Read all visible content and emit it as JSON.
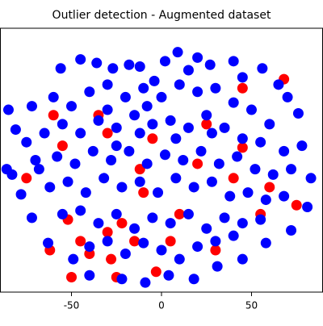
{
  "chart_data": {
    "type": "scatter",
    "title": "Outlier detection - Augmented dataset",
    "xlim": [
      -89.7,
      89.7
    ],
    "ylim": [
      -73.3,
      73.3
    ],
    "xticks": [
      -50,
      0,
      50
    ],
    "series": [
      {
        "color": "#ff0000",
        "x": [
          -52,
          -45,
          -30,
          -22,
          -15,
          -10,
          -5,
          -30,
          -55,
          -60,
          -75,
          -40,
          -28,
          5,
          -3,
          20,
          40,
          45,
          60,
          68,
          25,
          45,
          -35,
          -12,
          10,
          -50,
          -25,
          30,
          55,
          75,
          -62
        ],
        "y": [
          -33,
          -45,
          -40,
          -35,
          -45,
          -18,
          12,
          15,
          8,
          25,
          -10,
          -52,
          -55,
          -45,
          -62,
          -2,
          -10,
          7,
          -15,
          45,
          20,
          40,
          25,
          -5,
          -30,
          -65,
          -65,
          -50,
          -30,
          -25,
          -50
        ]
      },
      {
        "color": "#0000ff",
        "x": [
          -45,
          -36,
          -27,
          -18,
          -4,
          2,
          9,
          20,
          27,
          40,
          45,
          56,
          65,
          -56,
          -72,
          -81,
          -83,
          -78,
          -72,
          -63,
          -49,
          -40,
          -22,
          -9,
          4,
          18,
          31,
          45,
          58,
          72,
          81,
          83,
          78,
          76,
          70,
          -60,
          -50,
          -40,
          -30,
          -20,
          -10,
          0,
          10,
          20,
          30,
          40,
          50,
          60,
          -65,
          -55,
          -45,
          -35,
          -25,
          -15,
          -5,
          5,
          15,
          25,
          35,
          45,
          55,
          68,
          -70,
          -58,
          -48,
          -38,
          -28,
          -18,
          -8,
          2,
          12,
          22,
          32,
          42,
          52,
          62,
          72,
          -62,
          -52,
          -42,
          -32,
          -22,
          -12,
          -2,
          8,
          18,
          28,
          38,
          48,
          58,
          68,
          -55,
          -45,
          -35,
          -25,
          -15,
          -5,
          5,
          15,
          25,
          35,
          45,
          55,
          -40,
          -30,
          -20,
          -10,
          0,
          10,
          20,
          30,
          40,
          -85,
          -86,
          -75,
          -68,
          -30,
          -25,
          -12,
          8,
          28,
          -8,
          15,
          -12
        ],
        "y": [
          56,
          54,
          51,
          53,
          44,
          55,
          60,
          57,
          53,
          55,
          46,
          51,
          42,
          51,
          30,
          17,
          -8,
          -19,
          -32,
          -46,
          -55,
          -64,
          -66,
          -68,
          -64,
          -66,
          -59,
          -55,
          -46,
          -39,
          -26,
          -10,
          8,
          26,
          35,
          35,
          30,
          38,
          42,
          35,
          40,
          35,
          42,
          38,
          40,
          32,
          28,
          20,
          15,
          20,
          15,
          22,
          18,
          25,
          20,
          22,
          18,
          25,
          18,
          12,
          10,
          5,
          0,
          2,
          -2,
          5,
          0,
          5,
          -2,
          3,
          0,
          5,
          -2,
          2,
          -5,
          -8,
          -5,
          -15,
          -12,
          -18,
          -10,
          -15,
          -12,
          -18,
          -10,
          -15,
          -12,
          -20,
          -18,
          -22,
          -20,
          -30,
          -28,
          -35,
          -30,
          -38,
          -32,
          -35,
          -30,
          -38,
          -32,
          -35,
          -33,
          -48,
          -45,
          -52,
          -46,
          -50,
          -55,
          -48,
          -45,
          -42,
          28,
          -5,
          10,
          -5,
          28,
          8,
          15,
          12,
          15,
          30,
          50,
          52
        ]
      }
    ]
  }
}
